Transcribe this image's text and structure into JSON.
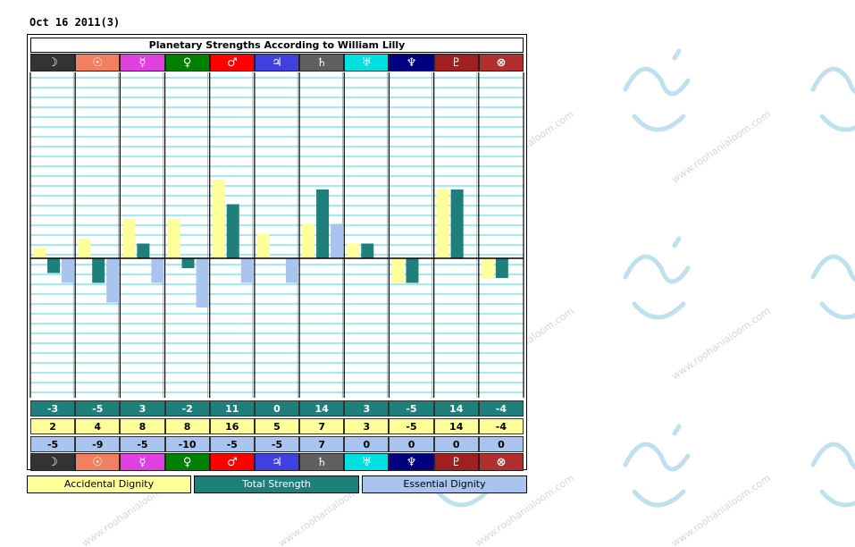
{
  "date_label": "Oct 16 2011(3)",
  "chart_data": {
    "type": "bar",
    "title": "Planetary Strengths According to William Lilly",
    "categories": [
      "☽",
      "☉",
      "☿",
      "♀",
      "♂",
      "♃",
      "♄",
      "♅",
      "♆",
      "♇",
      "⊗"
    ],
    "series": [
      {
        "name": "Accidental Dignity",
        "color": "#ffff99",
        "values": [
          2,
          4,
          8,
          8,
          16,
          5,
          7,
          3,
          -5,
          14,
          -4
        ]
      },
      {
        "name": "Total Strength",
        "color": "#1f7f7a",
        "values": [
          -3,
          -5,
          3,
          -2,
          11,
          0,
          14,
          3,
          -5,
          14,
          -4
        ]
      },
      {
        "name": "Essential Dignity",
        "color": "#aac4f0",
        "values": [
          -5,
          -9,
          -5,
          -10,
          -5,
          -5,
          7,
          0,
          0,
          0,
          0
        ]
      }
    ],
    "ylim": [
      -20,
      26
    ],
    "grid": true,
    "legend": "bottom"
  },
  "planet_colors": [
    "#333333",
    "#f08060",
    "#e040e0",
    "#008000",
    "#ff0000",
    "#4040e0",
    "#606060",
    "#00e0e0",
    "#000080",
    "#a02020",
    "#b03030"
  ],
  "table": {
    "total": [
      "-3",
      "-5",
      "3",
      "-2",
      "11",
      "0",
      "14",
      "3",
      "-5",
      "14",
      "-4"
    ],
    "accidental": [
      "2",
      "4",
      "8",
      "8",
      "16",
      "5",
      "7",
      "3",
      "-5",
      "14",
      "-4"
    ],
    "essential": [
      "-5",
      "-9",
      "-5",
      "-10",
      "-5",
      "-5",
      "7",
      "0",
      "0",
      "0",
      "0"
    ]
  },
  "legend": {
    "accidental": "Accidental Dignity",
    "total": "Total Strength",
    "essential": "Essential Dignity"
  },
  "watermark": "www.roohanialoom.com"
}
